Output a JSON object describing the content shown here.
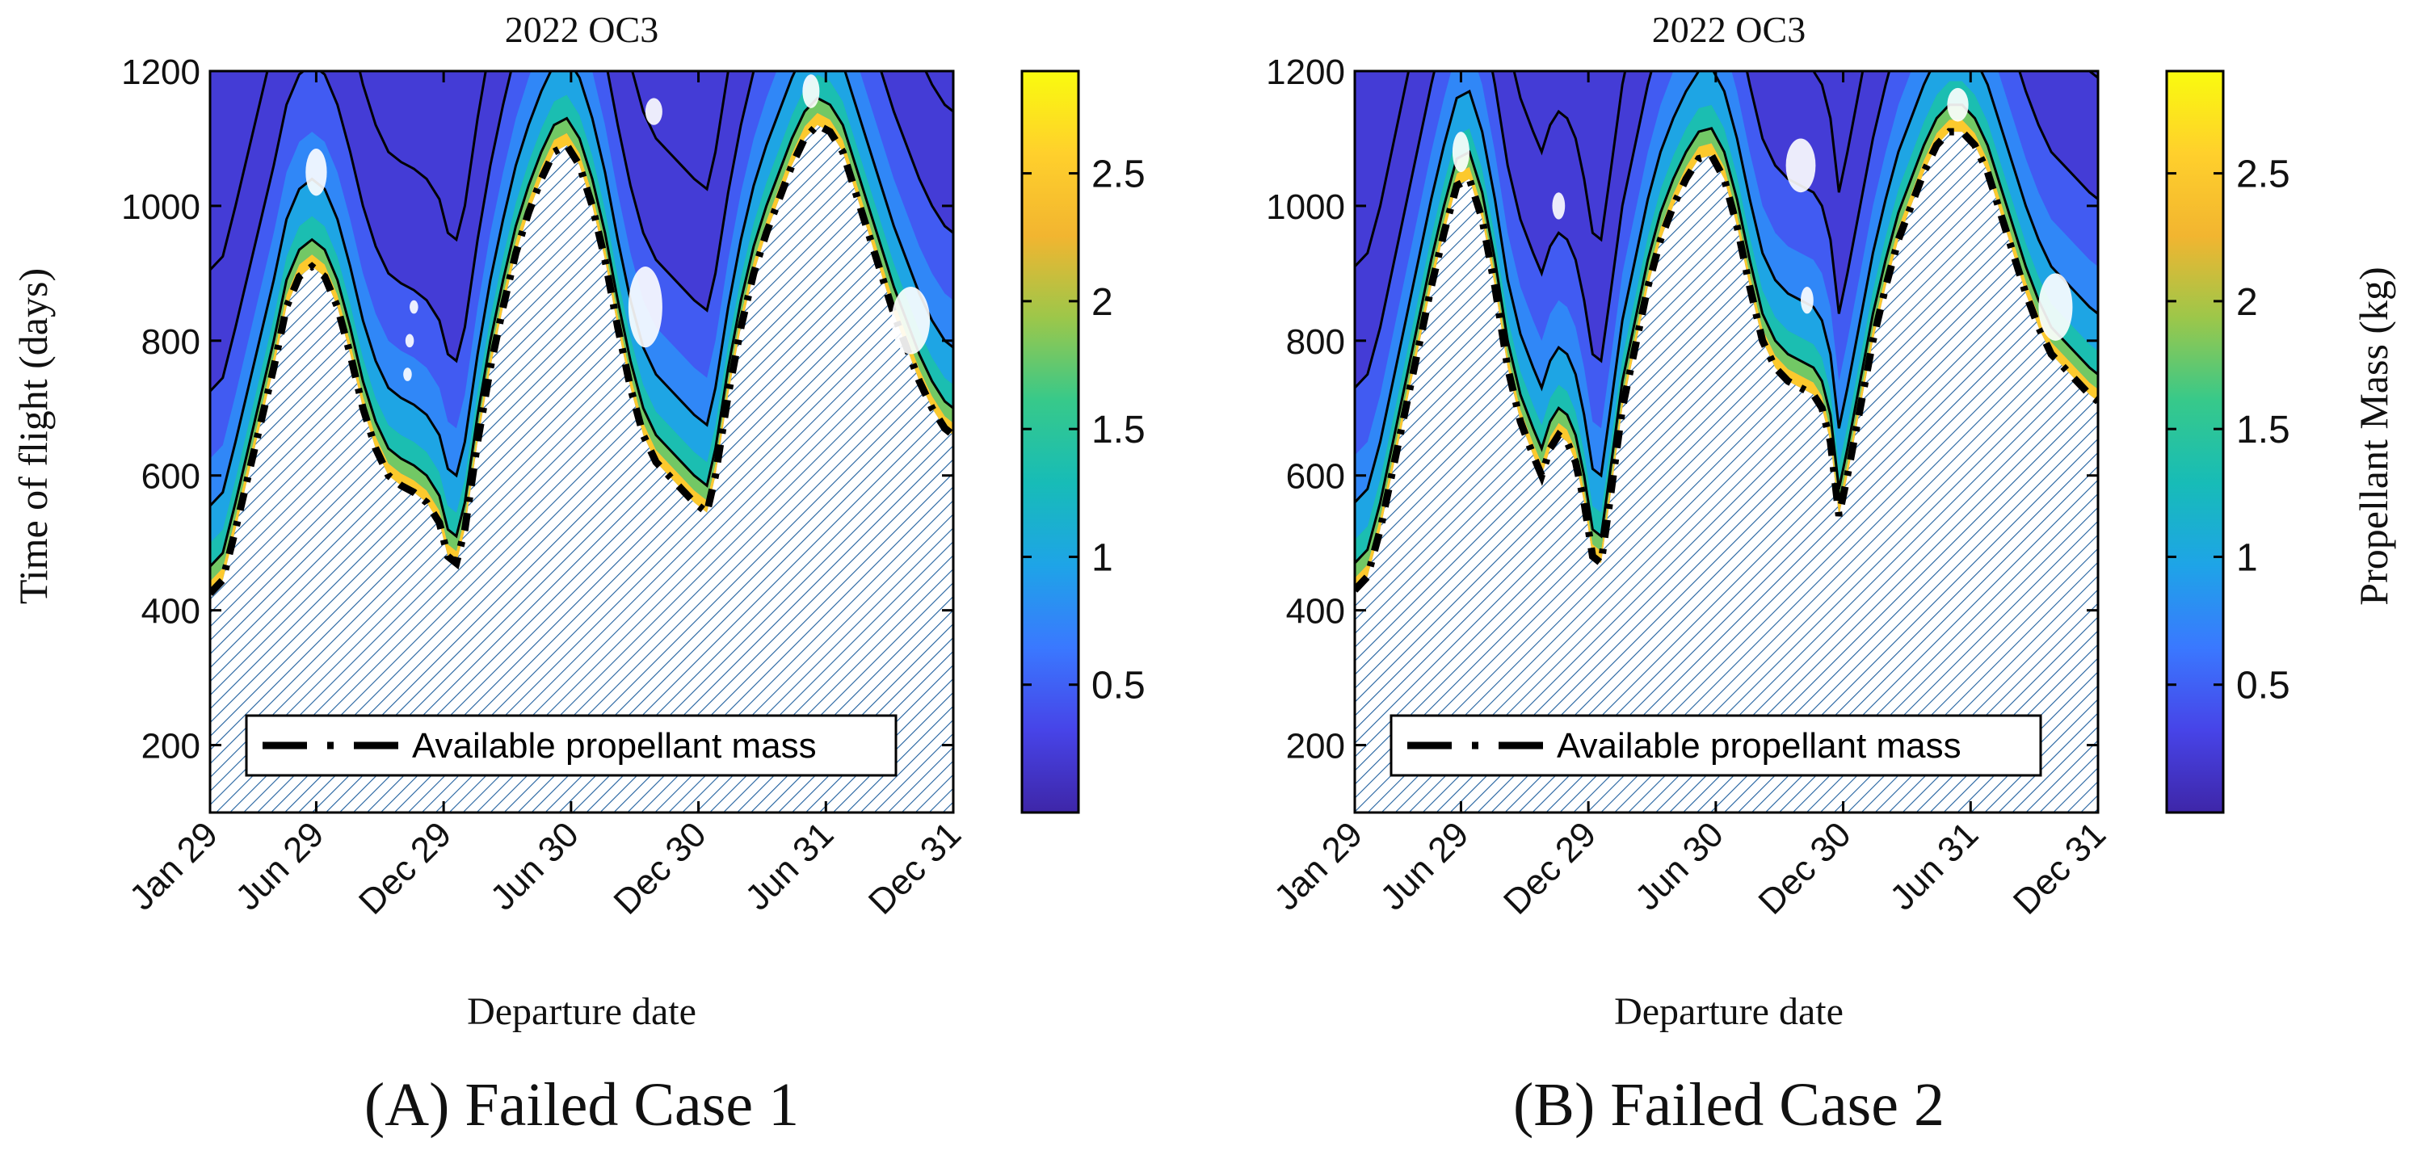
{
  "colors": {
    "hatch": "#1f5f9e",
    "contour_line": "#000000",
    "background": "#ffffff",
    "hole": "#ffffff"
  },
  "colormap_stops": [
    "#3e26a8",
    "#4744e8",
    "#3a78ff",
    "#1ea4e7",
    "#17bcb7",
    "#37c98a",
    "#9cc74a",
    "#f2b530",
    "#ffd02c",
    "#f9fb0e"
  ],
  "chart_data": [
    {
      "type": "contour",
      "panel_id": "A",
      "title": "2022 OC3",
      "xlabel": "Departure date",
      "ylabel": "Time of flight (days)",
      "ylim": [
        100,
        1200
      ],
      "xlim": [
        0,
        35
      ],
      "x_ticks": [
        {
          "label": "Jan 29",
          "month": 0
        },
        {
          "label": "Jun 29",
          "month": 5
        },
        {
          "label": "Dec 29",
          "month": 11
        },
        {
          "label": "Jun 30",
          "month": 17
        },
        {
          "label": "Dec 30",
          "month": 23
        },
        {
          "label": "Jun 31",
          "month": 29
        },
        {
          "label": "Dec 31",
          "month": 35
        }
      ],
      "y_ticks": [
        200,
        400,
        600,
        800,
        1000,
        1200
      ],
      "legend": {
        "entry": "Available propellant mass",
        "position": "bottom"
      },
      "caption": "(A) Failed Case 1",
      "feasibility_boundary": [
        [
          0,
          425
        ],
        [
          0.6,
          445
        ],
        [
          1.2,
          520
        ],
        [
          1.8,
          600
        ],
        [
          2.4,
          680
        ],
        [
          3.0,
          760
        ],
        [
          3.6,
          850
        ],
        [
          4.2,
          895
        ],
        [
          4.8,
          910
        ],
        [
          5.4,
          895
        ],
        [
          6.0,
          850
        ],
        [
          6.6,
          780
        ],
        [
          7.2,
          700
        ],
        [
          7.8,
          640
        ],
        [
          8.4,
          600
        ],
        [
          9.0,
          585
        ],
        [
          9.6,
          575
        ],
        [
          10.2,
          560
        ],
        [
          10.8,
          530
        ],
        [
          11.2,
          480
        ],
        [
          11.6,
          470
        ],
        [
          12.0,
          520
        ],
        [
          12.6,
          650
        ],
        [
          13.2,
          760
        ],
        [
          13.8,
          850
        ],
        [
          14.4,
          930
        ],
        [
          15.0,
          990
        ],
        [
          15.6,
          1040
        ],
        [
          16.2,
          1080
        ],
        [
          16.8,
          1090
        ],
        [
          17.4,
          1060
        ],
        [
          18.0,
          1000
        ],
        [
          18.6,
          920
        ],
        [
          19.2,
          820
        ],
        [
          19.8,
          730
        ],
        [
          20.4,
          660
        ],
        [
          21.0,
          620
        ],
        [
          21.6,
          600
        ],
        [
          22.2,
          580
        ],
        [
          22.8,
          560
        ],
        [
          23.4,
          545
        ],
        [
          23.8,
          600
        ],
        [
          24.4,
          720
        ],
        [
          25.0,
          820
        ],
        [
          25.6,
          900
        ],
        [
          26.2,
          960
        ],
        [
          26.8,
          1010
        ],
        [
          27.4,
          1060
        ],
        [
          28.0,
          1100
        ],
        [
          28.6,
          1120
        ],
        [
          29.2,
          1110
        ],
        [
          29.8,
          1080
        ],
        [
          30.4,
          1020
        ],
        [
          31.0,
          960
        ],
        [
          31.6,
          900
        ],
        [
          32.2,
          840
        ],
        [
          32.8,
          790
        ],
        [
          33.4,
          740
        ],
        [
          34.0,
          700
        ],
        [
          34.6,
          670
        ],
        [
          35,
          660
        ]
      ],
      "holes": [
        [
          5.0,
          1050,
          0.5,
          35
        ],
        [
          9.3,
          750,
          0.2,
          10
        ],
        [
          9.4,
          800,
          0.2,
          10
        ],
        [
          9.6,
          850,
          0.2,
          10
        ],
        [
          20.5,
          850,
          0.8,
          60
        ],
        [
          33.0,
          830,
          0.9,
          50
        ],
        [
          28.3,
          1170,
          0.4,
          25
        ],
        [
          20.9,
          1140,
          0.4,
          20
        ]
      ]
    },
    {
      "type": "contour",
      "panel_id": "B",
      "title": "2022 OC3",
      "xlabel": "Departure date",
      "ylabel": "",
      "ylim": [
        100,
        1200
      ],
      "xlim": [
        0,
        35
      ],
      "x_ticks": [
        {
          "label": "Jan 29",
          "month": 0
        },
        {
          "label": "Jun 29",
          "month": 5
        },
        {
          "label": "Dec 29",
          "month": 11
        },
        {
          "label": "Jun 30",
          "month": 17
        },
        {
          "label": "Dec 30",
          "month": 23
        },
        {
          "label": "Jun 31",
          "month": 29
        },
        {
          "label": "Dec 31",
          "month": 35
        }
      ],
      "y_ticks": [
        200,
        400,
        600,
        800,
        1000,
        1200
      ],
      "legend": {
        "entry": "Available propellant mass",
        "position": "bottom"
      },
      "caption": "(B) Failed Case 2",
      "feasibility_boundary": [
        [
          0,
          430
        ],
        [
          0.6,
          450
        ],
        [
          1.2,
          520
        ],
        [
          1.8,
          610
        ],
        [
          2.4,
          700
        ],
        [
          3.0,
          790
        ],
        [
          3.6,
          880
        ],
        [
          4.2,
          960
        ],
        [
          4.8,
          1030
        ],
        [
          5.4,
          1040
        ],
        [
          6.0,
          980
        ],
        [
          6.6,
          880
        ],
        [
          7.2,
          760
        ],
        [
          7.8,
          680
        ],
        [
          8.4,
          630
        ],
        [
          8.8,
          600
        ],
        [
          9.2,
          640
        ],
        [
          9.6,
          660
        ],
        [
          10.0,
          650
        ],
        [
          10.4,
          620
        ],
        [
          10.8,
          560
        ],
        [
          11.2,
          480
        ],
        [
          11.6,
          470
        ],
        [
          12.0,
          560
        ],
        [
          12.6,
          700
        ],
        [
          13.2,
          790
        ],
        [
          13.8,
          880
        ],
        [
          14.4,
          950
        ],
        [
          15.0,
          1000
        ],
        [
          15.6,
          1040
        ],
        [
          16.2,
          1070
        ],
        [
          16.8,
          1075
        ],
        [
          17.4,
          1040
        ],
        [
          18.0,
          970
        ],
        [
          18.6,
          880
        ],
        [
          19.2,
          800
        ],
        [
          19.8,
          760
        ],
        [
          20.4,
          740
        ],
        [
          21.0,
          730
        ],
        [
          21.6,
          720
        ],
        [
          22.0,
          700
        ],
        [
          22.4,
          650
        ],
        [
          22.8,
          540
        ],
        [
          23.2,
          600
        ],
        [
          23.8,
          700
        ],
        [
          24.4,
          800
        ],
        [
          25.0,
          880
        ],
        [
          25.6,
          950
        ],
        [
          26.2,
          1000
        ],
        [
          26.8,
          1050
        ],
        [
          27.4,
          1090
        ],
        [
          28.0,
          1110
        ],
        [
          28.6,
          1110
        ],
        [
          29.2,
          1090
        ],
        [
          29.8,
          1050
        ],
        [
          30.4,
          990
        ],
        [
          31.0,
          930
        ],
        [
          31.6,
          870
        ],
        [
          32.2,
          820
        ],
        [
          32.8,
          780
        ],
        [
          33.4,
          760
        ],
        [
          34.0,
          740
        ],
        [
          34.6,
          720
        ],
        [
          35,
          710
        ]
      ],
      "holes": [
        [
          5.0,
          1080,
          0.4,
          30
        ],
        [
          9.6,
          1000,
          0.3,
          20
        ],
        [
          21.0,
          1060,
          0.7,
          40
        ],
        [
          33.0,
          850,
          0.8,
          50
        ],
        [
          28.4,
          1150,
          0.5,
          25
        ],
        [
          21.3,
          860,
          0.3,
          20
        ]
      ]
    },
    {
      "type": "colorbar",
      "label": "Propellant Mass (kg)",
      "range": [
        0,
        2.9
      ],
      "ticks": [
        0.5,
        1,
        1.5,
        2,
        2.5
      ]
    }
  ],
  "captions": {
    "a": "(A) Failed Case 1",
    "b": "(B) Failed Case 2"
  }
}
